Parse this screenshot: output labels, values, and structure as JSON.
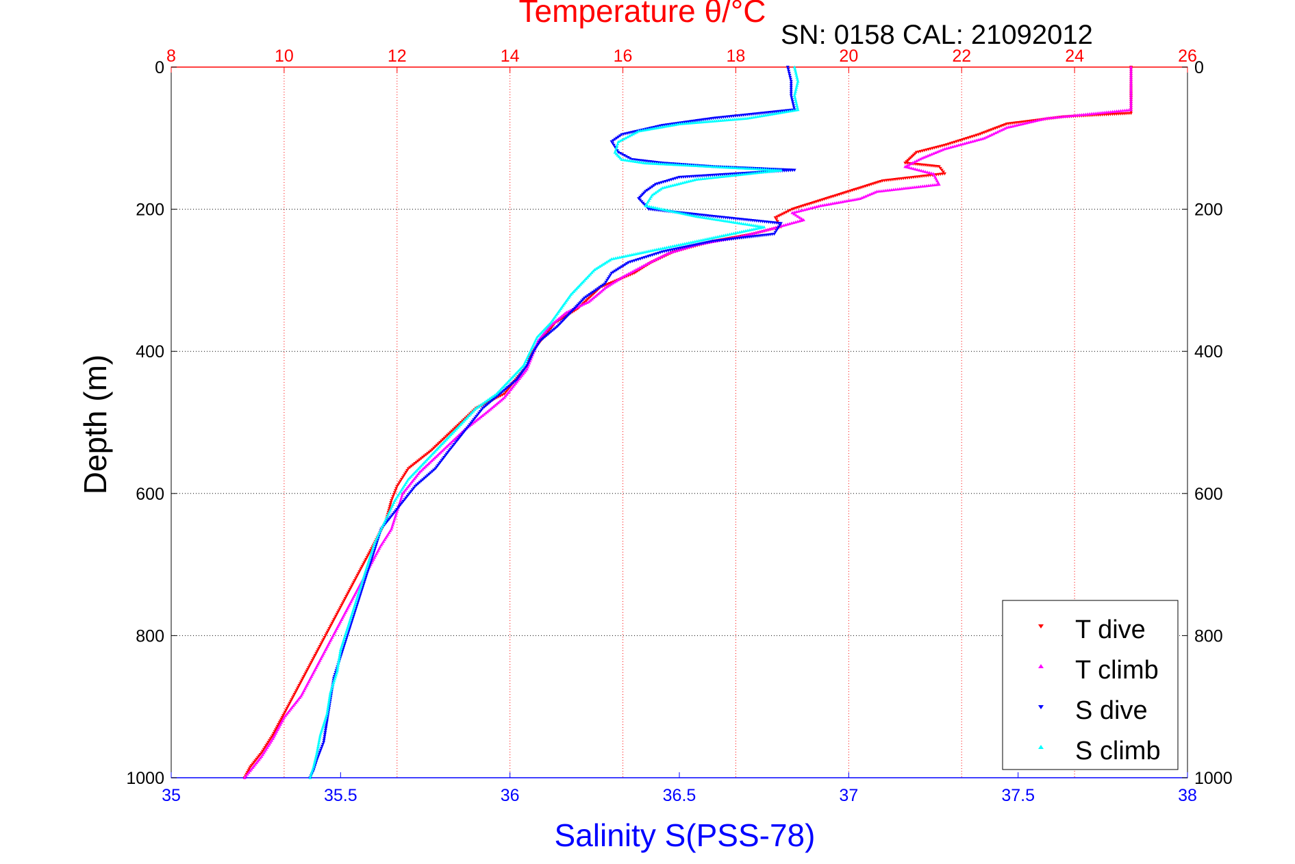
{
  "chart_data": {
    "type": "scatter",
    "title": "Temperature θ/°C",
    "subtitle": "SN: 0158  CAL: 21092012",
    "xlabel": "Salinity S(PSS-78)",
    "ylabel": "Depth (m)",
    "colors": {
      "temperature_axis": "#ff0000",
      "salinity_axis": "#0000ff",
      "depth_axis": "#000000"
    },
    "axes": {
      "temperature": {
        "range": [
          8,
          26
        ],
        "ticks": [
          "8",
          "10",
          "12",
          "14",
          "16",
          "18",
          "20",
          "22",
          "24",
          "26"
        ]
      },
      "salinity": {
        "range": [
          35,
          38
        ],
        "ticks": [
          "35",
          "35.5",
          "36",
          "36.5",
          "37",
          "37.5",
          "38"
        ]
      },
      "depth": {
        "range": [
          0,
          1000
        ],
        "reversed": true,
        "ticks": [
          "0",
          "200",
          "400",
          "600",
          "800",
          "1000"
        ]
      }
    },
    "grid": true,
    "legend": {
      "position": "bottom-right"
    },
    "series": [
      {
        "name": "T dive",
        "axis": "temperature",
        "color": "#ff0000",
        "marker": "triangle-down",
        "points": [
          [
            25.0,
            0
          ],
          [
            25.0,
            20
          ],
          [
            25.0,
            40
          ],
          [
            25.0,
            65
          ],
          [
            23.8,
            70
          ],
          [
            22.8,
            80
          ],
          [
            22.3,
            95
          ],
          [
            21.7,
            110
          ],
          [
            21.2,
            120
          ],
          [
            21.0,
            135
          ],
          [
            21.6,
            140
          ],
          [
            21.7,
            150
          ],
          [
            20.6,
            160
          ],
          [
            20.2,
            170
          ],
          [
            19.8,
            180
          ],
          [
            19.4,
            190
          ],
          [
            19.0,
            200
          ],
          [
            18.7,
            212
          ],
          [
            18.8,
            225
          ],
          [
            18.3,
            235
          ],
          [
            17.6,
            245
          ],
          [
            16.9,
            260
          ],
          [
            16.5,
            275
          ],
          [
            16.2,
            290
          ],
          [
            15.6,
            310
          ],
          [
            15.4,
            325
          ],
          [
            15.2,
            340
          ],
          [
            14.8,
            360
          ],
          [
            14.6,
            380
          ],
          [
            14.4,
            400
          ],
          [
            14.3,
            420
          ],
          [
            14.1,
            440
          ],
          [
            13.9,
            460
          ],
          [
            13.4,
            480
          ],
          [
            13.0,
            510
          ],
          [
            12.6,
            540
          ],
          [
            12.2,
            565
          ],
          [
            12.0,
            590
          ],
          [
            11.9,
            610
          ],
          [
            11.8,
            640
          ],
          [
            11.6,
            670
          ],
          [
            11.4,
            700
          ],
          [
            11.2,
            730
          ],
          [
            11.0,
            760
          ],
          [
            10.8,
            790
          ],
          [
            10.6,
            820
          ],
          [
            10.4,
            850
          ],
          [
            10.2,
            880
          ],
          [
            10.0,
            910
          ],
          [
            9.8,
            940
          ],
          [
            9.6,
            965
          ],
          [
            9.4,
            985
          ],
          [
            9.3,
            1000
          ]
        ]
      },
      {
        "name": "T climb",
        "axis": "temperature",
        "color": "#ff00ff",
        "marker": "triangle-up",
        "points": [
          [
            25.0,
            0
          ],
          [
            25.0,
            30
          ],
          [
            25.0,
            60
          ],
          [
            23.5,
            72
          ],
          [
            22.8,
            85
          ],
          [
            22.4,
            100
          ],
          [
            21.7,
            115
          ],
          [
            21.3,
            128
          ],
          [
            21.0,
            140
          ],
          [
            21.5,
            150
          ],
          [
            21.6,
            165
          ],
          [
            20.5,
            175
          ],
          [
            20.2,
            185
          ],
          [
            19.5,
            195
          ],
          [
            19.0,
            205
          ],
          [
            19.2,
            215
          ],
          [
            18.6,
            228
          ],
          [
            18.1,
            238
          ],
          [
            17.3,
            250
          ],
          [
            16.8,
            262
          ],
          [
            16.4,
            278
          ],
          [
            16.0,
            295
          ],
          [
            15.7,
            310
          ],
          [
            15.4,
            330
          ],
          [
            15.0,
            345
          ],
          [
            14.7,
            365
          ],
          [
            14.5,
            385
          ],
          [
            14.4,
            405
          ],
          [
            14.3,
            425
          ],
          [
            14.1,
            445
          ],
          [
            13.9,
            465
          ],
          [
            13.6,
            485
          ],
          [
            13.2,
            510
          ],
          [
            12.8,
            540
          ],
          [
            12.4,
            570
          ],
          [
            12.1,
            600
          ],
          [
            12.0,
            625
          ],
          [
            11.9,
            650
          ],
          [
            11.7,
            675
          ],
          [
            11.5,
            705
          ],
          [
            11.3,
            735
          ],
          [
            11.1,
            765
          ],
          [
            10.9,
            795
          ],
          [
            10.7,
            825
          ],
          [
            10.5,
            855
          ],
          [
            10.3,
            885
          ],
          [
            10.0,
            915
          ],
          [
            9.8,
            945
          ],
          [
            9.6,
            970
          ],
          [
            9.4,
            990
          ],
          [
            9.3,
            1000
          ]
        ]
      },
      {
        "name": "S dive",
        "axis": "salinity",
        "color": "#0000ff",
        "marker": "triangle-down",
        "points": [
          [
            36.82,
            0
          ],
          [
            36.83,
            20
          ],
          [
            36.83,
            40
          ],
          [
            36.84,
            60
          ],
          [
            36.6,
            72
          ],
          [
            36.45,
            82
          ],
          [
            36.33,
            95
          ],
          [
            36.3,
            105
          ],
          [
            36.32,
            120
          ],
          [
            36.36,
            130
          ],
          [
            36.45,
            135
          ],
          [
            36.6,
            140
          ],
          [
            36.84,
            145
          ],
          [
            36.5,
            155
          ],
          [
            36.43,
            165
          ],
          [
            36.4,
            175
          ],
          [
            36.38,
            185
          ],
          [
            36.41,
            200
          ],
          [
            36.6,
            210
          ],
          [
            36.8,
            220
          ],
          [
            36.78,
            235
          ],
          [
            36.6,
            245
          ],
          [
            36.45,
            260
          ],
          [
            36.35,
            275
          ],
          [
            36.3,
            290
          ],
          [
            36.28,
            305
          ],
          [
            36.22,
            325
          ],
          [
            36.18,
            345
          ],
          [
            36.14,
            365
          ],
          [
            36.09,
            385
          ],
          [
            36.07,
            400
          ],
          [
            36.05,
            420
          ],
          [
            36.02,
            440
          ],
          [
            35.97,
            460
          ],
          [
            35.92,
            480
          ],
          [
            35.87,
            510
          ],
          [
            35.82,
            540
          ],
          [
            35.78,
            565
          ],
          [
            35.72,
            590
          ],
          [
            35.67,
            620
          ],
          [
            35.62,
            650
          ],
          [
            35.6,
            680
          ],
          [
            35.58,
            710
          ],
          [
            35.56,
            740
          ],
          [
            35.54,
            770
          ],
          [
            35.52,
            800
          ],
          [
            35.5,
            830
          ],
          [
            35.48,
            860
          ],
          [
            35.47,
            890
          ],
          [
            35.46,
            920
          ],
          [
            35.45,
            950
          ],
          [
            35.43,
            975
          ],
          [
            35.42,
            990
          ],
          [
            35.41,
            1000
          ]
        ]
      },
      {
        "name": "S climb",
        "axis": "salinity",
        "color": "#00ffff",
        "marker": "triangle-up",
        "points": [
          [
            36.84,
            0
          ],
          [
            36.85,
            20
          ],
          [
            36.84,
            40
          ],
          [
            36.85,
            60
          ],
          [
            36.7,
            72
          ],
          [
            36.5,
            80
          ],
          [
            36.38,
            90
          ],
          [
            36.32,
            105
          ],
          [
            36.31,
            120
          ],
          [
            36.33,
            130
          ],
          [
            36.4,
            135
          ],
          [
            36.6,
            140
          ],
          [
            36.8,
            145
          ],
          [
            36.55,
            158
          ],
          [
            36.45,
            170
          ],
          [
            36.42,
            180
          ],
          [
            36.4,
            195
          ],
          [
            36.55,
            210
          ],
          [
            36.75,
            225
          ],
          [
            36.6,
            240
          ],
          [
            36.45,
            255
          ],
          [
            36.3,
            270
          ],
          [
            36.25,
            285
          ],
          [
            36.22,
            300
          ],
          [
            36.18,
            320
          ],
          [
            36.15,
            340
          ],
          [
            36.12,
            360
          ],
          [
            36.08,
            380
          ],
          [
            36.06,
            400
          ],
          [
            36.04,
            420
          ],
          [
            36.0,
            440
          ],
          [
            35.96,
            460
          ],
          [
            35.9,
            480
          ],
          [
            35.85,
            505
          ],
          [
            35.8,
            530
          ],
          [
            35.75,
            555
          ],
          [
            35.7,
            580
          ],
          [
            35.66,
            610
          ],
          [
            35.63,
            640
          ],
          [
            35.6,
            670
          ],
          [
            35.58,
            700
          ],
          [
            35.56,
            730
          ],
          [
            35.54,
            760
          ],
          [
            35.52,
            790
          ],
          [
            35.5,
            820
          ],
          [
            35.49,
            850
          ],
          [
            35.47,
            880
          ],
          [
            35.46,
            910
          ],
          [
            35.44,
            940
          ],
          [
            35.43,
            965
          ],
          [
            35.42,
            985
          ],
          [
            35.41,
            1000
          ]
        ]
      }
    ]
  }
}
